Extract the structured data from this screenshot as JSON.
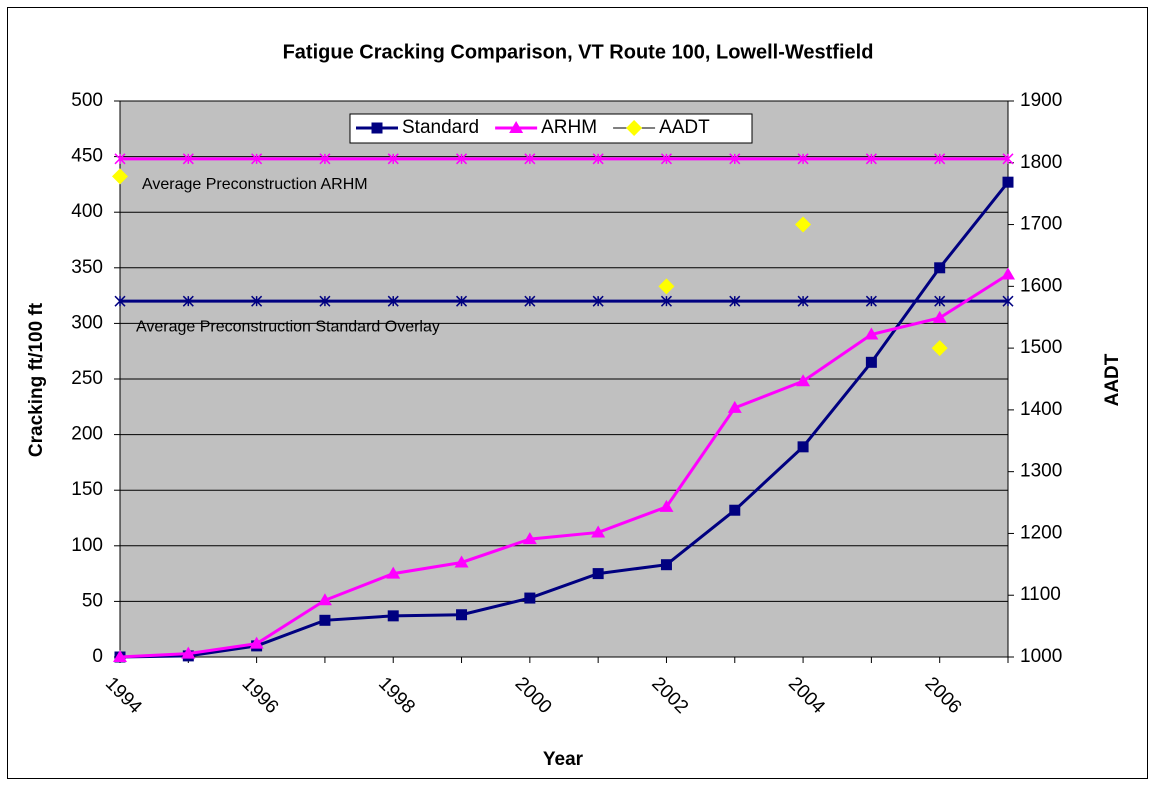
{
  "chart_data": {
    "type": "line",
    "title": "Fatigue Cracking Comparison, VT Route 100, Lowell-Westfield",
    "x_label": "Year",
    "y_label": "Cracking  ft/100 ft",
    "y2_label": "AADT",
    "categories": [
      "1994",
      null,
      "1996",
      null,
      "1998",
      null,
      "2000",
      null,
      "2002",
      null,
      "2004",
      null,
      "2006",
      null
    ],
    "series": [
      {
        "name": "Standard",
        "color": "#000080",
        "marker": "square",
        "values": [
          0,
          1,
          10,
          33,
          37,
          38,
          53,
          75,
          83,
          132,
          189,
          265,
          350,
          427
        ]
      },
      {
        "name": "ARHM",
        "color": "#ff00ff",
        "marker": "triangle",
        "values": [
          0,
          3,
          12,
          51,
          75,
          85,
          106,
          112,
          135,
          224,
          248,
          290,
          305,
          344
        ]
      },
      {
        "name": "AADT",
        "color": "#ffff00",
        "marker": "diamond",
        "axis": "y2",
        "line": false,
        "values": [
          1778,
          null,
          null,
          null,
          null,
          null,
          null,
          null,
          1600,
          null,
          1700,
          null,
          1500,
          null
        ]
      }
    ],
    "reference_lines": [
      {
        "label": "Average Preconstruction ARHM",
        "value": 448,
        "color": "#ff00ff"
      },
      {
        "label": "Average Preconstruction Standard Overlay",
        "value": 320,
        "color": "#000080"
      }
    ],
    "ylim": [
      0,
      500
    ],
    "yticks": [
      0,
      50,
      100,
      150,
      200,
      250,
      300,
      350,
      400,
      450,
      500
    ],
    "y2lim": [
      1000,
      1900
    ],
    "y2ticks": [
      1000,
      1100,
      1200,
      1300,
      1400,
      1500,
      1600,
      1700,
      1800,
      1900
    ],
    "grid": true,
    "plot_background": "#c0c0c0",
    "legend": "top"
  }
}
